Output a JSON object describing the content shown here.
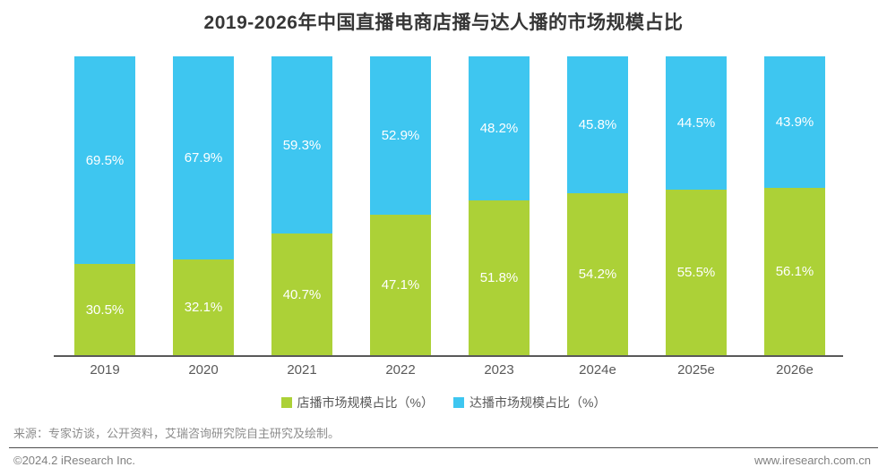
{
  "chart_data": {
    "type": "bar",
    "stacked": true,
    "title": "2019-2026年中国直播电商店播与达人播的市场规模占比",
    "categories": [
      "2019",
      "2020",
      "2021",
      "2022",
      "2023",
      "2024e",
      "2025e",
      "2026e"
    ],
    "series": [
      {
        "name": "店播市场规模占比（%）",
        "color": "#ACD137",
        "position": "bottom",
        "values": [
          30.5,
          32.1,
          40.7,
          47.1,
          51.8,
          54.2,
          55.5,
          56.1
        ]
      },
      {
        "name": "达播市场规模占比（%）",
        "color": "#3EC6F0",
        "position": "top",
        "values": [
          69.5,
          67.9,
          59.3,
          52.9,
          48.2,
          45.8,
          44.5,
          43.9
        ]
      }
    ],
    "xlabel": "",
    "ylabel": "",
    "ylim": [
      0,
      100
    ],
    "grid": false,
    "legend_position": "bottom",
    "value_label_format": "{v}%",
    "value_label_color": "#ffffff"
  },
  "source_note": "来源：专家访谈，公开资料，艾瑞咨询研究院自主研究及绘制。",
  "footer": {
    "copyright": "©2024.2 iResearch Inc.",
    "website": "www.iresearch.com.cn"
  }
}
